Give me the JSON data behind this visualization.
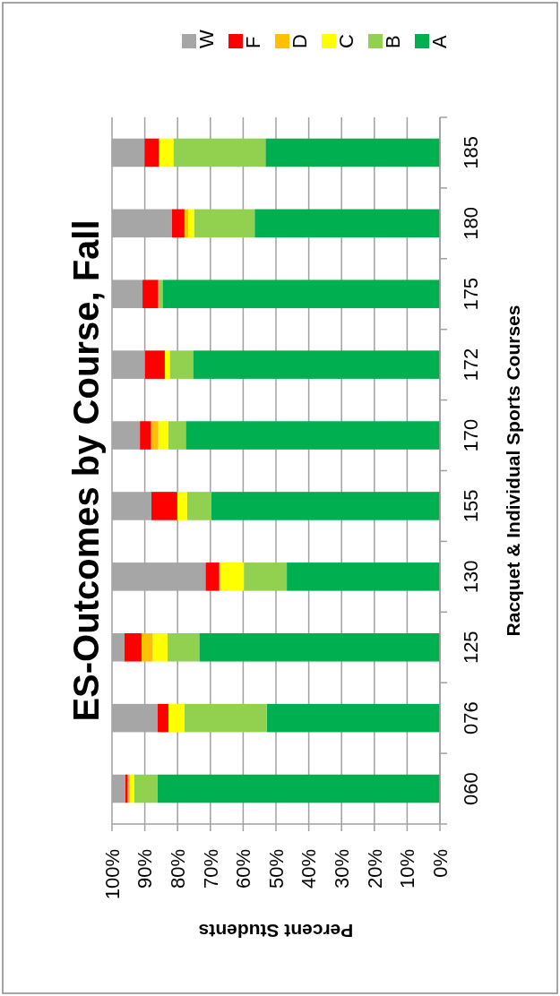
{
  "chart_data": {
    "type": "bar",
    "stacked": true,
    "orientation": "horizontal",
    "title": "ES-Outcomes by Course, Fall",
    "xlabel": "Percent Students",
    "ylabel": "Racquet & Individual Sports Courses",
    "categories": [
      "185",
      "180",
      "175",
      "172",
      "170",
      "155",
      "130",
      "125",
      "076",
      "060"
    ],
    "series": [
      {
        "name": "A",
        "color": "#00b050",
        "values": [
          53.2,
          56.5,
          84.6,
          75.3,
          77.5,
          69.7,
          46.7,
          73.4,
          52.8,
          86.2
        ]
      },
      {
        "name": "B",
        "color": "#92d050",
        "values": [
          28.1,
          18.5,
          1.3,
          7.1,
          5.3,
          7.4,
          13.1,
          9.7,
          25.1,
          7.1
        ]
      },
      {
        "name": "C",
        "color": "#ffff00",
        "values": [
          4.4,
          1.8,
          null,
          1.5,
          3.1,
          3.0,
          7.5,
          4.5,
          4.9,
          1.3
        ]
      },
      {
        "name": "D",
        "color": "#ffc000",
        "values": [
          null,
          1.1,
          null,
          null,
          2.2,
          null,
          null,
          3.4,
          null,
          0.6
        ]
      },
      {
        "name": "F",
        "color": "#ff0000",
        "values": [
          4.4,
          3.8,
          4.8,
          6.1,
          3.4,
          7.9,
          4.2,
          5.3,
          3.4,
          0.7
        ]
      },
      {
        "name": "W",
        "color": "#a6a6a6",
        "values": [
          10.0,
          18.3,
          9.3,
          10.0,
          8.5,
          12.0,
          28.5,
          3.7,
          13.8,
          4.1
        ]
      }
    ],
    "xlim": [
      100,
      0
    ],
    "xticks": [
      {
        "value": 100,
        "label": "100%"
      },
      {
        "value": 90,
        "label": "90%"
      },
      {
        "value": 80,
        "label": "80%"
      },
      {
        "value": 70,
        "label": "70%"
      },
      {
        "value": 60,
        "label": "60%"
      },
      {
        "value": 50,
        "label": "50%"
      },
      {
        "value": 40,
        "label": "40%"
      },
      {
        "value": 30,
        "label": "30%"
      },
      {
        "value": 20,
        "label": "20%"
      },
      {
        "value": 10,
        "label": "10%"
      },
      {
        "value": 0,
        "label": "0%"
      }
    ],
    "grid": "x",
    "legend": "top right"
  }
}
